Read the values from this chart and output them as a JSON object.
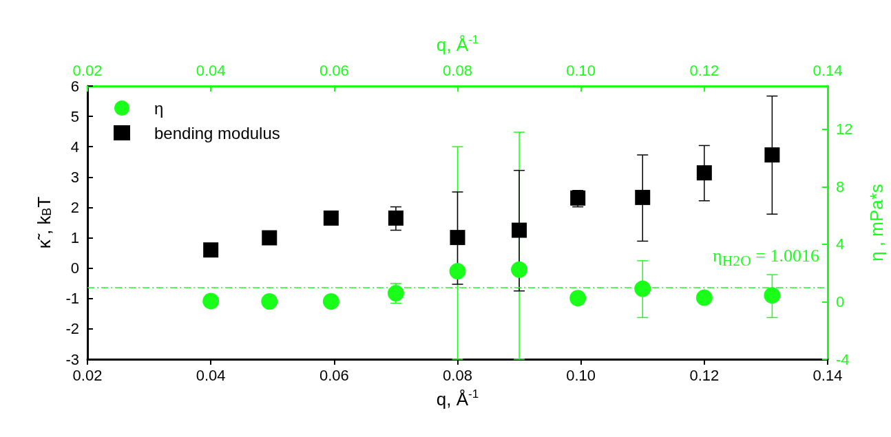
{
  "chart_data": {
    "type": "scatter",
    "xlabel": "q, Å$^{-1}$",
    "x2label": "q, Å$^{-1}$",
    "ylabel": "κ̃ , k$_{B}$T",
    "y2label": "η , mPa*s",
    "xlim": [
      0.02,
      0.14
    ],
    "xticks": [
      0.02,
      0.04,
      0.06,
      0.08,
      {
        "value": 0.1,
        "label": "0.10"
      },
      {
        "value": 0.12,
        "label": "0.12"
      },
      {
        "value": 0.14,
        "label": "0.14"
      }
    ],
    "x2lim": [
      0.02,
      0.14
    ],
    "x2ticks": [
      0.02,
      0.04,
      0.06,
      0.08,
      {
        "value": 0.1,
        "label": "0.10"
      },
      {
        "value": 0.12,
        "label": "0.12"
      },
      {
        "value": 0.14,
        "label": "0.14"
      }
    ],
    "ylim": [
      -3,
      6
    ],
    "yticks": [
      -3,
      -2,
      -1,
      0,
      1,
      2,
      3,
      4,
      5,
      6
    ],
    "y2lim": [
      -4,
      15
    ],
    "y2ticks": [
      -4,
      0,
      4,
      8,
      12
    ],
    "grid": false,
    "legend": "top left",
    "series": [
      {
        "name": "η",
        "color": "#1aff1a",
        "marker": "circle",
        "axis": "y2",
        "x": [
          0.04,
          0.0495,
          0.0595,
          0.07,
          0.08,
          0.09,
          0.0995,
          0.11,
          0.12,
          0.131
        ],
        "values": [
          0.05,
          0.02,
          0.02,
          0.59,
          2.12,
          2.23,
          0.25,
          0.9,
          0.28,
          0.44
        ],
        "errors": [
          null,
          null,
          null,
          [
            -0.1,
            1.27
          ],
          [
            -4,
            10.78
          ],
          [
            -4,
            11.79
          ],
          null,
          [
            -1.1,
            2.85
          ],
          null,
          [
            -1.1,
            1.88
          ]
        ]
      },
      {
        "name": "bending modulus",
        "color": "#000000",
        "marker": "square",
        "x": [
          0.04,
          0.0495,
          0.0595,
          0.07,
          0.08,
          0.09,
          0.0995,
          0.11,
          0.12,
          0.131
        ],
        "values": [
          0.6,
          1.0,
          1.65,
          1.65,
          1.01,
          1.25,
          2.31,
          2.33,
          3.14,
          3.73
        ],
        "errors": [
          null,
          null,
          null,
          [
            1.25,
            2.02
          ],
          [
            -0.53,
            2.51
          ],
          [
            -0.75,
            3.22
          ],
          [
            2.02,
            2.56
          ],
          [
            0.89,
            3.73
          ],
          [
            2.22,
            4.04
          ],
          [
            1.78,
            5.67
          ]
        ]
      }
    ],
    "ref_lines": [
      {
        "axis": "y2",
        "value": 1.0016,
        "label": "η$_{H2O}$ = 1.0016",
        "color": "#1aff1a",
        "line_style": "dashed"
      }
    ]
  }
}
